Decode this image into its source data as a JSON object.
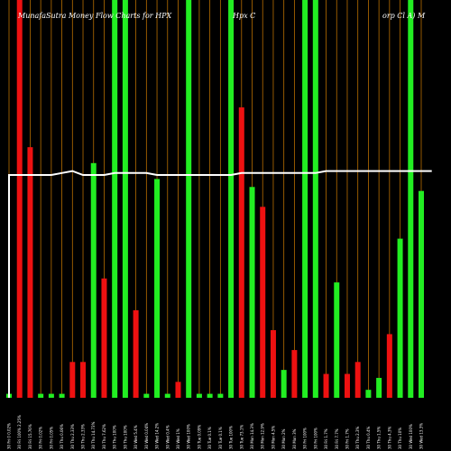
{
  "chart_data": {
    "type": "bar",
    "title_parts": [
      "MunafaSutra  Money Flow  Charts for HPX",
      "Hpx C",
      "orp Cl A) M"
    ],
    "ylim": [
      0,
      100
    ],
    "grid": "vertical orange lines",
    "colors": {
      "up": "#22ee22",
      "down": "#ee1111",
      "line": "#ffffff",
      "grid": "#b86e00",
      "background": "#000000"
    },
    "bars": [
      {
        "label": "30 Fri 0 0.02%",
        "value": 1,
        "dir": "up"
      },
      {
        "label": "30 Fri 100% 2.25%",
        "value": 100,
        "dir": "down"
      },
      {
        "label": "30 Fri 15.76%",
        "value": 63,
        "dir": "down"
      },
      {
        "label": "30 Fri 0.02%",
        "value": 1,
        "dir": "up"
      },
      {
        "label": "30 Fri 0.05%",
        "value": 1,
        "dir": "up"
      },
      {
        "label": "30 Thu 0.06%",
        "value": 1,
        "dir": "up"
      },
      {
        "label": "30 Thu 2.33%",
        "value": 9,
        "dir": "down"
      },
      {
        "label": "30 Thu 2.33%",
        "value": 9,
        "dir": "down"
      },
      {
        "label": "30 Thu 14.73%",
        "value": 59,
        "dir": "up"
      },
      {
        "label": "30 Thu 7.62%",
        "value": 30,
        "dir": "down"
      },
      {
        "label": "30 Thu 100%",
        "value": 100,
        "dir": "up"
      },
      {
        "label": "30 Thu 100%",
        "value": 100,
        "dir": "up"
      },
      {
        "label": "30 Wed 5.4%",
        "value": 22,
        "dir": "down"
      },
      {
        "label": "30 Wed 0.04%",
        "value": 1,
        "dir": "up"
      },
      {
        "label": "30 Wed 14.2%",
        "value": 55,
        "dir": "up"
      },
      {
        "label": "30 Wed 0.4%",
        "value": 1,
        "dir": "up"
      },
      {
        "label": "30 Wed 1%",
        "value": 4,
        "dir": "down"
      },
      {
        "label": "30 Wed 100%",
        "value": 100,
        "dir": "up"
      },
      {
        "label": "30 Tue 0.09%",
        "value": 1,
        "dir": "up"
      },
      {
        "label": "30 Tue 0.1%",
        "value": 1,
        "dir": "up"
      },
      {
        "label": "30 Tue 0.1%",
        "value": 1,
        "dir": "up"
      },
      {
        "label": "30 Tue 100%",
        "value": 100,
        "dir": "up"
      },
      {
        "label": "30 Tue 73.1%",
        "value": 73,
        "dir": "down"
      },
      {
        "label": "30 Mon 14.3%",
        "value": 53,
        "dir": "up"
      },
      {
        "label": "30 Mon 12.9%",
        "value": 48,
        "dir": "down"
      },
      {
        "label": "30 Mon 4.5%",
        "value": 17,
        "dir": "down"
      },
      {
        "label": "30 Mon 2%",
        "value": 7,
        "dir": "up"
      },
      {
        "label": "30 Mon 3%",
        "value": 12,
        "dir": "down"
      },
      {
        "label": "30 Fri 100%",
        "value": 100,
        "dir": "up"
      },
      {
        "label": "30 Fri 100%",
        "value": 100,
        "dir": "up"
      },
      {
        "label": "30 Fri 1.7%",
        "value": 6,
        "dir": "down"
      },
      {
        "label": "30 Fri 7.7%",
        "value": 29,
        "dir": "up"
      },
      {
        "label": "30 Fri 1.7%",
        "value": 6,
        "dir": "down"
      },
      {
        "label": "30 Thu 2.3%",
        "value": 9,
        "dir": "down"
      },
      {
        "label": "30 Thu 0.4%",
        "value": 2,
        "dir": "up"
      },
      {
        "label": "30 Thu 1.5%",
        "value": 5,
        "dir": "up"
      },
      {
        "label": "30 Thu 4.3%",
        "value": 16,
        "dir": "down"
      },
      {
        "label": "30 Thu 10%",
        "value": 40,
        "dir": "up"
      },
      {
        "label": "30 Wed 100%",
        "value": 100,
        "dir": "up"
      },
      {
        "label": "30 Wed 13.3%",
        "value": 52,
        "dir": "up"
      }
    ],
    "line_values": [
      56,
      56,
      56,
      56,
      56,
      56.5,
      57,
      56,
      56,
      56,
      56.5,
      56.5,
      56.5,
      56.5,
      56,
      56,
      56,
      56,
      56,
      56,
      56,
      56,
      56.5,
      56.5,
      56.5,
      56.5,
      56.5,
      56.5,
      56.5,
      56.5,
      57,
      57,
      57,
      57,
      57,
      57,
      57,
      57,
      57,
      57,
      57
    ]
  }
}
